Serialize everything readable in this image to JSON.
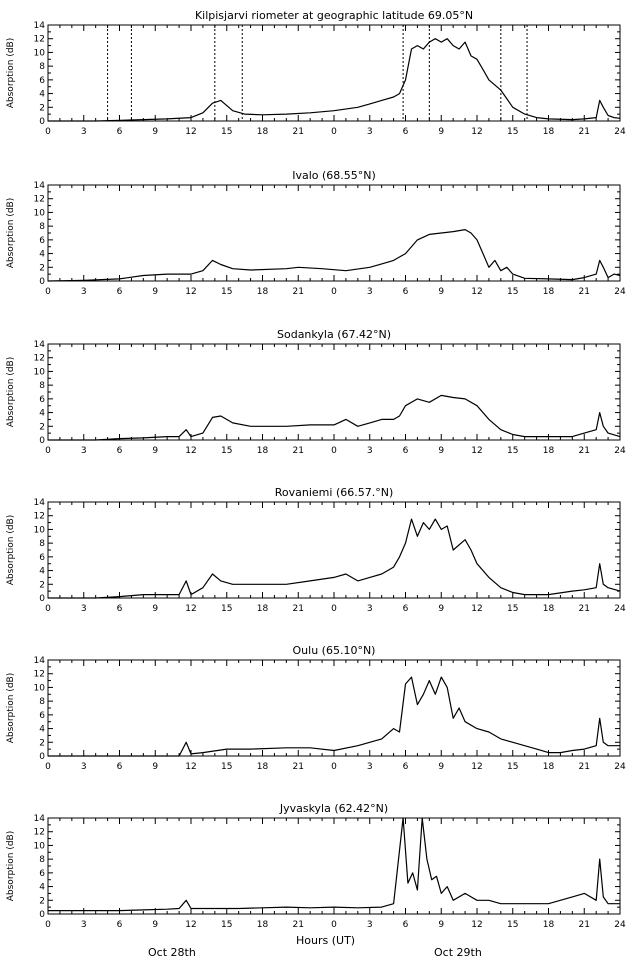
{
  "chart_data": [
    {
      "type": "line",
      "title": "Kilpisjarvi riometer at geographic latitude 69.05°N",
      "ylabel": "Absorption (dB)",
      "ylim": [
        0,
        14
      ],
      "xlim": [
        0,
        48
      ],
      "yticks": [
        0,
        2,
        4,
        6,
        8,
        10,
        12,
        14
      ],
      "xtick_labels": [
        "0",
        "3",
        "6",
        "9",
        "12",
        "15",
        "18",
        "21",
        "0",
        "3",
        "6",
        "9",
        "12",
        "15",
        "18",
        "21",
        "24"
      ],
      "markers": [
        5,
        7,
        14,
        16.3,
        29.8,
        32,
        38,
        40.2
      ],
      "series": [
        {
          "x": [
            0,
            4,
            6,
            8,
            10,
            12,
            13,
            13.8,
            14.5,
            15.5,
            16.5,
            18,
            20,
            22,
            24,
            26,
            27,
            28,
            29,
            29.5,
            30,
            30.5,
            31,
            31.5,
            32,
            32.5,
            33,
            33.5,
            34,
            34.5,
            35,
            35.5,
            36,
            36.5,
            37,
            38,
            39,
            40,
            41,
            42,
            44,
            45,
            46,
            46.3,
            46.6,
            47,
            47.5,
            48
          ],
          "y": [
            0,
            0,
            0.1,
            0.2,
            0.3,
            0.5,
            1.2,
            2.6,
            3.0,
            1.5,
            1,
            0.9,
            1.0,
            1.2,
            1.5,
            2,
            2.5,
            3,
            3.5,
            4,
            6,
            10.5,
            11,
            10.5,
            11.5,
            12,
            11.5,
            12,
            11,
            10.5,
            11.5,
            9.5,
            9,
            7.5,
            6,
            4.5,
            2,
            1,
            0.5,
            0.3,
            0.2,
            0.3,
            0.5,
            3,
            2,
            0.8,
            0.5,
            0.4
          ]
        }
      ]
    },
    {
      "type": "line",
      "title": "Ivalo (68.55°N)",
      "ylabel": "Absorption (dB)",
      "ylim": [
        0,
        14
      ],
      "xlim": [
        0,
        48
      ],
      "yticks": [
        0,
        2,
        4,
        6,
        8,
        10,
        12,
        14
      ],
      "xtick_labels": [
        "0",
        "3",
        "6",
        "9",
        "12",
        "15",
        "18",
        "21",
        "0",
        "3",
        "6",
        "9",
        "12",
        "15",
        "18",
        "21",
        "24"
      ],
      "markers": [],
      "series": [
        {
          "x": [
            0,
            3,
            6,
            8,
            10,
            12,
            13,
            13.8,
            14.5,
            15.5,
            17,
            20,
            21,
            23,
            25,
            27,
            28,
            29,
            29.5,
            30,
            31,
            32,
            33,
            34,
            35,
            35.5,
            36,
            36.5,
            37,
            37.5,
            38,
            38.5,
            39,
            40,
            42,
            44,
            45,
            46,
            46.3,
            46.6,
            47,
            47.5,
            48
          ],
          "y": [
            0,
            0.1,
            0.3,
            0.8,
            1,
            1,
            1.5,
            3,
            2.4,
            1.8,
            1.6,
            1.8,
            2,
            1.8,
            1.5,
            2,
            2.5,
            3,
            3.5,
            4,
            6,
            6.8,
            7,
            7.2,
            7.5,
            7,
            6,
            4,
            2,
            3,
            1.5,
            2,
            1,
            0.4,
            0.3,
            0.2,
            0.5,
            1,
            3,
            2,
            0.5,
            1,
            0.8
          ]
        }
      ]
    },
    {
      "type": "line",
      "title": "Sodankyla (67.42°N)",
      "ylabel": "Absorption (dB)",
      "ylim": [
        0,
        14
      ],
      "xlim": [
        0,
        48
      ],
      "yticks": [
        0,
        2,
        4,
        6,
        8,
        10,
        12,
        14
      ],
      "xtick_labels": [
        "0",
        "3",
        "6",
        "9",
        "12",
        "15",
        "18",
        "21",
        "0",
        "3",
        "6",
        "9",
        "12",
        "15",
        "18",
        "21",
        "24"
      ],
      "markers": [],
      "series": [
        {
          "x": [
            0,
            4,
            6,
            8,
            10,
            11,
            11.6,
            12,
            13,
            13.8,
            14.5,
            15.5,
            17,
            20,
            22,
            24,
            25,
            26,
            27,
            28,
            29,
            29.5,
            30,
            31,
            32,
            33,
            34,
            35,
            36,
            37,
            38,
            39,
            40,
            42,
            44,
            45,
            46,
            46.3,
            46.6,
            47,
            48
          ],
          "y": [
            0,
            0,
            0.2,
            0.3,
            0.5,
            0.5,
            1.5,
            0.5,
            1,
            3.3,
            3.5,
            2.5,
            2,
            2,
            2.2,
            2.2,
            3,
            2,
            2.5,
            3,
            3,
            3.5,
            5,
            6,
            5.5,
            6.5,
            6.2,
            6,
            5,
            3,
            1.5,
            0.8,
            0.5,
            0.5,
            0.5,
            1,
            1.5,
            4,
            2,
            1,
            0.5
          ]
        }
      ]
    },
    {
      "type": "line",
      "title": "Rovaniemi (66.57.°N)",
      "ylabel": "Absorption (dB)",
      "ylim": [
        0,
        14
      ],
      "xlim": [
        0,
        48
      ],
      "yticks": [
        0,
        2,
        4,
        6,
        8,
        10,
        12,
        14
      ],
      "xtick_labels": [
        "0",
        "3",
        "6",
        "9",
        "12",
        "15",
        "18",
        "21",
        "0",
        "3",
        "6",
        "9",
        "12",
        "15",
        "18",
        "21",
        "24"
      ],
      "markers": [],
      "series": [
        {
          "x": [
            0,
            4,
            6,
            8,
            10,
            11,
            11.6,
            12,
            13,
            13.8,
            14.5,
            15.5,
            17,
            20,
            22,
            24,
            25,
            26,
            27,
            28,
            29,
            29.5,
            30,
            30.5,
            31,
            31.5,
            32,
            32.5,
            33,
            33.5,
            34,
            35,
            35.5,
            36,
            37,
            38,
            39,
            40,
            42,
            44,
            45,
            46,
            46.3,
            46.6,
            47,
            48
          ],
          "y": [
            0,
            0,
            0.2,
            0.5,
            0.5,
            0.5,
            2.5,
            0.5,
            1.5,
            3.5,
            2.5,
            2,
            2,
            2,
            2.5,
            3,
            3.5,
            2.5,
            3,
            3.5,
            4.5,
            6,
            8,
            11.5,
            9,
            11,
            10,
            11.5,
            10,
            10.5,
            7,
            8.5,
            7,
            5,
            3,
            1.5,
            0.8,
            0.5,
            0.5,
            1,
            1.2,
            1.5,
            5,
            2,
            1.5,
            1
          ]
        }
      ]
    },
    {
      "type": "line",
      "title": "Oulu (65.10°N)",
      "ylabel": "Absorption (dB)",
      "ylim": [
        0,
        14
      ],
      "xlim": [
        0,
        48
      ],
      "yticks": [
        0,
        2,
        4,
        6,
        8,
        10,
        12,
        14
      ],
      "xtick_labels": [
        "0",
        "3",
        "6",
        "9",
        "12",
        "15",
        "18",
        "21",
        "0",
        "3",
        "6",
        "9",
        "12",
        "15",
        "18",
        "21",
        "24"
      ],
      "markers": [],
      "series": [
        {
          "x": [
            0,
            4,
            6,
            8,
            10,
            11,
            11.6,
            12,
            13,
            15,
            17,
            20,
            22,
            24,
            26,
            28,
            29,
            29.5,
            30,
            30.5,
            31,
            31.5,
            32,
            32.5,
            33,
            33.5,
            34,
            34.5,
            35,
            36,
            37,
            38,
            39,
            40,
            41,
            42,
            43,
            44,
            45,
            46,
            46.3,
            46.6,
            47,
            48
          ],
          "y": [
            0,
            0,
            0,
            0,
            0,
            0,
            2,
            0.3,
            0.5,
            1,
            1,
            1.2,
            1.2,
            0.8,
            1.5,
            2.5,
            4,
            3.5,
            10.5,
            11.5,
            7.5,
            9,
            11,
            9,
            11.5,
            10,
            5.5,
            7,
            5,
            4,
            3.5,
            2.5,
            2,
            1.5,
            1,
            0.5,
            0.5,
            0.8,
            1,
            1.5,
            5.5,
            2,
            1.5,
            1.5
          ]
        }
      ]
    },
    {
      "type": "line",
      "title": "Jyvaskyla (62.42°N)",
      "ylabel": "Absorption (dB)",
      "ylim": [
        0,
        14
      ],
      "xlim": [
        0,
        48
      ],
      "yticks": [
        0,
        2,
        4,
        6,
        8,
        10,
        12,
        14
      ],
      "xtick_labels": [
        "0",
        "3",
        "6",
        "9",
        "12",
        "15",
        "18",
        "21",
        "0",
        "3",
        "6",
        "9",
        "12",
        "15",
        "18",
        "21",
        "24"
      ],
      "markers": [],
      "series": [
        {
          "x": [
            0,
            4,
            6,
            8,
            10,
            11,
            11.6,
            12,
            14,
            16,
            18,
            20,
            22,
            24,
            26,
            28,
            29,
            29.8,
            30.2,
            30.6,
            31,
            31.4,
            31.8,
            32.2,
            32.6,
            33,
            33.5,
            34,
            35,
            36,
            37,
            38,
            40,
            42,
            43,
            44,
            45,
            46,
            46.3,
            46.6,
            47,
            48
          ],
          "y": [
            0.5,
            0.5,
            0.5,
            0.6,
            0.7,
            0.8,
            2,
            0.8,
            0.8,
            0.8,
            0.9,
            1,
            0.9,
            1,
            0.9,
            1,
            1.5,
            14,
            4.5,
            6,
            3.5,
            14,
            8,
            5,
            5.5,
            3,
            4,
            2,
            3,
            2,
            2,
            1.5,
            1.5,
            1.5,
            2,
            2.5,
            3,
            2,
            8,
            2.5,
            1.5,
            1.5
          ]
        }
      ]
    }
  ],
  "bottom": {
    "xlabel": "Hours (UT)",
    "day1": "Oct 28th",
    "day2": "Oct 29th"
  }
}
